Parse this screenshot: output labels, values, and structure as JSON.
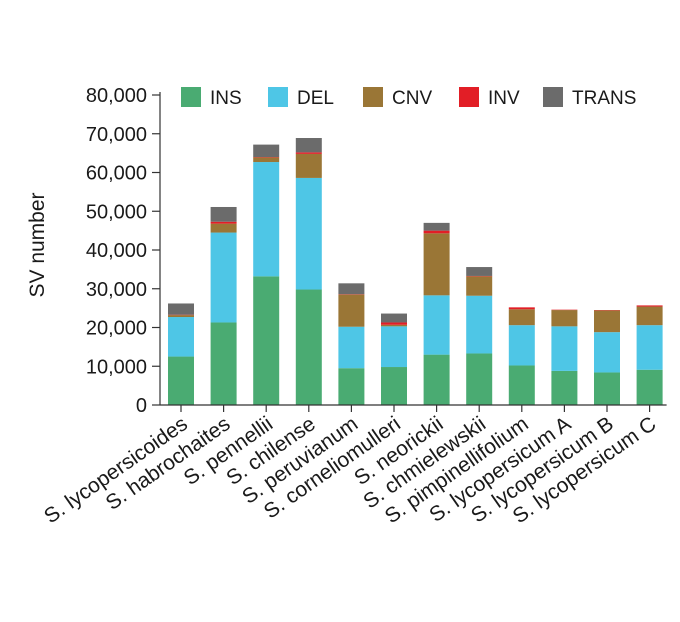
{
  "chart_data": {
    "type": "bar",
    "stacked": true,
    "ylabel": "SV number",
    "xlabel": "",
    "ylim": [
      0,
      80000
    ],
    "yticks": [
      0,
      10000,
      20000,
      30000,
      40000,
      50000,
      60000,
      70000,
      80000
    ],
    "ytick_labels": [
      "0",
      "10,000",
      "20,000",
      "30,000",
      "40,000",
      "50,000",
      "60,000",
      "70,000",
      "80,000"
    ],
    "legend_position": "top",
    "categories": [
      "S. lycopersicoides",
      "S. habrochaites",
      "S. pennellii",
      "S. chilense",
      "S. peruvianum",
      "S. corneliomulleri",
      "S. neorickii",
      "S. chmielewskii",
      "S. pimpinellifolium",
      "S. lycopersicum A",
      "S. lycopersicum B",
      "S. lycopersicum C"
    ],
    "series": [
      {
        "name": "INS",
        "color": "#4aab72",
        "values": [
          12500,
          21300,
          33200,
          29800,
          9500,
          9800,
          13000,
          13300,
          10200,
          8800,
          8400,
          9100
        ]
      },
      {
        "name": "DEL",
        "color": "#4ec6e6",
        "values": [
          10200,
          23200,
          29500,
          28800,
          10700,
          10500,
          15300,
          14900,
          10400,
          11500,
          10400,
          11500
        ]
      },
      {
        "name": "CNV",
        "color": "#9a7636",
        "values": [
          500,
          2300,
          1200,
          6200,
          8300,
          400,
          16000,
          5000,
          4100,
          4200,
          5600,
          4800
        ]
      },
      {
        "name": "INV",
        "color": "#e21e26",
        "values": [
          100,
          500,
          100,
          400,
          100,
          600,
          700,
          100,
          500,
          100,
          100,
          300
        ]
      },
      {
        "name": "TRANS",
        "color": "#6b6b6b",
        "values": [
          2900,
          3800,
          3200,
          3700,
          2800,
          2300,
          2000,
          2300,
          0,
          0,
          0,
          0
        ]
      }
    ]
  }
}
